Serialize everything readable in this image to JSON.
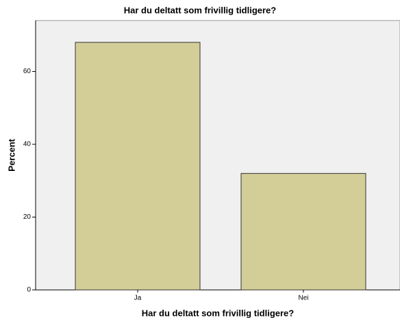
{
  "chart_data": {
    "type": "bar",
    "title": "Har du deltatt som frivillig tidligere?",
    "x_label": "Har du deltatt som frivillig tidligere?",
    "y_label": "Percent",
    "categories": [
      "Ja",
      "Nei"
    ],
    "values": [
      68,
      32
    ],
    "color": "#d3ce97",
    "ylim": [
      0,
      74
    ],
    "yticks": [
      0,
      20,
      40,
      60
    ],
    "grid": false
  }
}
